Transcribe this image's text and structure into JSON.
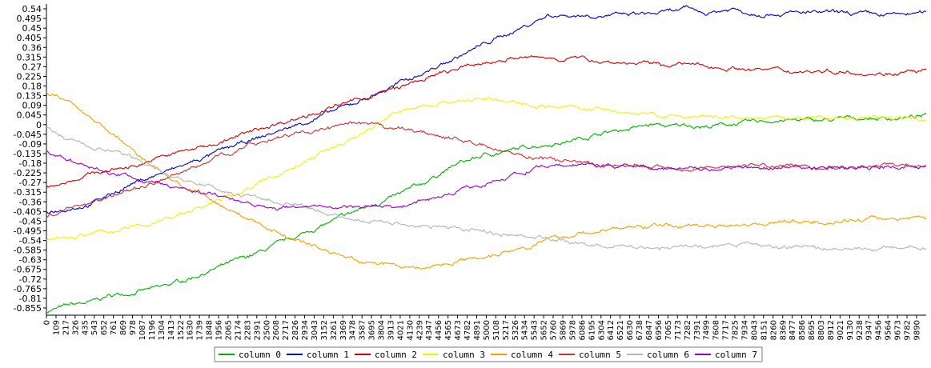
{
  "chart_data": {
    "type": "line",
    "title": "",
    "xlabel": "",
    "ylabel": "",
    "xlim": [
      0,
      10000
    ],
    "ylim": [
      -0.9,
      0.56
    ],
    "grid": false,
    "legend_placement": "bottom",
    "y_ticks": [
      "0.54",
      "0.495",
      "0.45",
      "0.405",
      "0.36",
      "0.315",
      "0.27",
      "0.225",
      "0.18",
      "0.135",
      "0.09",
      "0.045",
      "0",
      "-0.045",
      "-0.09",
      "-0.135",
      "-0.18",
      "-0.225",
      "-0.27",
      "-0.315",
      "-0.36",
      "-0.405",
      "-0.45",
      "-0.495",
      "-0.54",
      "-0.585",
      "-0.63",
      "-0.675",
      "-0.72",
      "-0.765",
      "-0.81",
      "-0.855"
    ],
    "x_ticks": [
      "0",
      "109",
      "217",
      "326",
      "435",
      "543",
      "652",
      "761",
      "869",
      "978",
      "1087",
      "1196",
      "1304",
      "1413",
      "1522",
      "1630",
      "1739",
      "1848",
      "1956",
      "2065",
      "2174",
      "2283",
      "2391",
      "2500",
      "2608",
      "2717",
      "2826",
      "2934",
      "3043",
      "3152",
      "3261",
      "3369",
      "3478",
      "3587",
      "3695",
      "3804",
      "3913",
      "4021",
      "4130",
      "4239",
      "4347",
      "4456",
      "4565",
      "4673",
      "4782",
      "4891",
      "5000",
      "5108",
      "5217",
      "5326",
      "5434",
      "5543",
      "5652",
      "5760",
      "5869",
      "5978",
      "6086",
      "6195",
      "6304",
      "6412",
      "6521",
      "6630",
      "6738",
      "6847",
      "6956",
      "7065",
      "7173",
      "7282",
      "7391",
      "7499",
      "7608",
      "7717",
      "7825",
      "7934",
      "8043",
      "8151",
      "8260",
      "8369",
      "8477",
      "8586",
      "8695",
      "8803",
      "8912",
      "9021",
      "9130",
      "9238",
      "9347",
      "9456",
      "9564",
      "9673",
      "9782",
      "9890"
    ],
    "series": [
      {
        "name": "column 0",
        "color": "#00b000",
        "x": [
          0,
          300,
          500,
          700,
          1000,
          1300,
          1600,
          2000,
          2400,
          2800,
          3200,
          3600,
          4000,
          4300,
          4500,
          4700,
          5000,
          5300,
          5500,
          5700,
          5900,
          6100,
          6300,
          6600,
          6900,
          7100,
          7300,
          7500,
          7700,
          8000,
          8300,
          8600,
          8900,
          9100,
          9400,
          9700,
          10000
        ],
        "y": [
          -0.87,
          -0.84,
          -0.83,
          -0.8,
          -0.78,
          -0.76,
          -0.72,
          -0.66,
          -0.6,
          -0.53,
          -0.46,
          -0.39,
          -0.33,
          -0.27,
          -0.22,
          -0.18,
          -0.14,
          -0.12,
          -0.1,
          -0.09,
          -0.08,
          -0.06,
          -0.04,
          -0.02,
          0.0,
          -0.01,
          0.0,
          -0.01,
          0.0,
          0.01,
          0.02,
          0.02,
          0.02,
          0.03,
          0.03,
          0.03,
          0.04
        ]
      },
      {
        "name": "column 1",
        "color": "#0000c8",
        "x": [
          0,
          500,
          1000,
          1500,
          2000,
          2500,
          3000,
          3500,
          4000,
          4500,
          5000,
          5500,
          5700,
          6000,
          6500,
          7000,
          7300,
          7500,
          7800,
          8000,
          8500,
          9000,
          9500,
          10000
        ],
        "y": [
          -0.405,
          -0.37,
          -0.27,
          -0.2,
          -0.12,
          -0.05,
          0.02,
          0.1,
          0.19,
          0.28,
          0.38,
          0.47,
          0.51,
          0.51,
          0.51,
          0.52,
          0.54,
          0.52,
          0.54,
          0.52,
          0.52,
          0.52,
          0.51,
          0.52
        ]
      },
      {
        "name": "column 2",
        "color": "#d00000",
        "x": [
          0,
          500,
          1000,
          1500,
          2000,
          2500,
          3000,
          3500,
          4000,
          4500,
          5000,
          5300,
          5600,
          6000,
          6500,
          7000,
          7300,
          7500,
          8000,
          8500,
          9000,
          9500,
          10000
        ],
        "y": [
          -0.29,
          -0.23,
          -0.19,
          -0.13,
          -0.08,
          -0.01,
          0.05,
          0.11,
          0.17,
          0.24,
          0.29,
          0.31,
          0.31,
          0.31,
          0.29,
          0.28,
          0.28,
          0.27,
          0.26,
          0.25,
          0.25,
          0.24,
          0.25
        ]
      },
      {
        "name": "column 3",
        "color": "#f0f000",
        "x": [
          0,
          500,
          1000,
          1500,
          2000,
          2500,
          3000,
          3500,
          4000,
          4300,
          4600,
          5000,
          5300,
          5600,
          6000,
          6500,
          7000,
          7500,
          8000,
          8500,
          9000,
          9500,
          10000
        ],
        "y": [
          -0.54,
          -0.51,
          -0.48,
          -0.42,
          -0.35,
          -0.26,
          -0.16,
          -0.06,
          0.06,
          0.09,
          0.11,
          0.12,
          0.1,
          0.09,
          0.08,
          0.06,
          0.04,
          0.03,
          0.03,
          0.03,
          0.03,
          0.03,
          0.03
        ]
      },
      {
        "name": "column 4",
        "color": "#f0a000",
        "x": [
          0,
          200,
          500,
          800,
          1000,
          1300,
          1600,
          2000,
          2400,
          2800,
          3200,
          3600,
          4000,
          4300,
          4600,
          5000,
          5400,
          5800,
          6200,
          6600,
          7000,
          7500,
          8000,
          8500,
          9000,
          9500,
          10000
        ],
        "y": [
          0.15,
          0.12,
          0.04,
          -0.06,
          -0.13,
          -0.22,
          -0.3,
          -0.38,
          -0.46,
          -0.53,
          -0.59,
          -0.64,
          -0.66,
          -0.67,
          -0.64,
          -0.61,
          -0.57,
          -0.53,
          -0.5,
          -0.48,
          -0.47,
          -0.47,
          -0.46,
          -0.45,
          -0.45,
          -0.44,
          -0.43
        ]
      },
      {
        "name": "column 5",
        "color": "#c83232",
        "x": [
          0,
          500,
          1000,
          1500,
          2000,
          2500,
          3000,
          3500,
          3800,
          4200,
          4600,
          5000,
          5500,
          6000,
          6500,
          7000,
          7500,
          8000,
          8500,
          9000,
          9500,
          10000
        ],
        "y": [
          -0.43,
          -0.36,
          -0.3,
          -0.23,
          -0.14,
          -0.07,
          -0.03,
          0.0,
          -0.01,
          -0.03,
          -0.06,
          -0.1,
          -0.15,
          -0.18,
          -0.19,
          -0.2,
          -0.2,
          -0.19,
          -0.19,
          -0.2,
          -0.19,
          -0.19
        ]
      },
      {
        "name": "column 6",
        "color": "#b4b4b4",
        "x": [
          0,
          300,
          600,
          1000,
          1500,
          2000,
          2500,
          3000,
          3500,
          4000,
          4500,
          5000,
          5500,
          6000,
          6500,
          7000,
          7500,
          8000,
          8500,
          9000,
          9500,
          10000
        ],
        "y": [
          -0.02,
          -0.08,
          -0.11,
          -0.16,
          -0.25,
          -0.31,
          -0.35,
          -0.4,
          -0.44,
          -0.46,
          -0.48,
          -0.5,
          -0.52,
          -0.55,
          -0.57,
          -0.57,
          -0.57,
          -0.56,
          -0.57,
          -0.58,
          -0.58,
          -0.57
        ]
      },
      {
        "name": "column 7",
        "color": "#9600c8",
        "x": [
          0,
          300,
          600,
          1000,
          1500,
          2000,
          2500,
          3000,
          3500,
          4000,
          4500,
          5000,
          5500,
          6000,
          6500,
          7000,
          7500,
          8000,
          8500,
          9000,
          9500,
          10000
        ],
        "y": [
          -0.12,
          -0.18,
          -0.21,
          -0.25,
          -0.3,
          -0.33,
          -0.38,
          -0.39,
          -0.38,
          -0.38,
          -0.33,
          -0.27,
          -0.21,
          -0.19,
          -0.19,
          -0.2,
          -0.2,
          -0.2,
          -0.2,
          -0.2,
          -0.2,
          -0.2
        ]
      }
    ]
  }
}
